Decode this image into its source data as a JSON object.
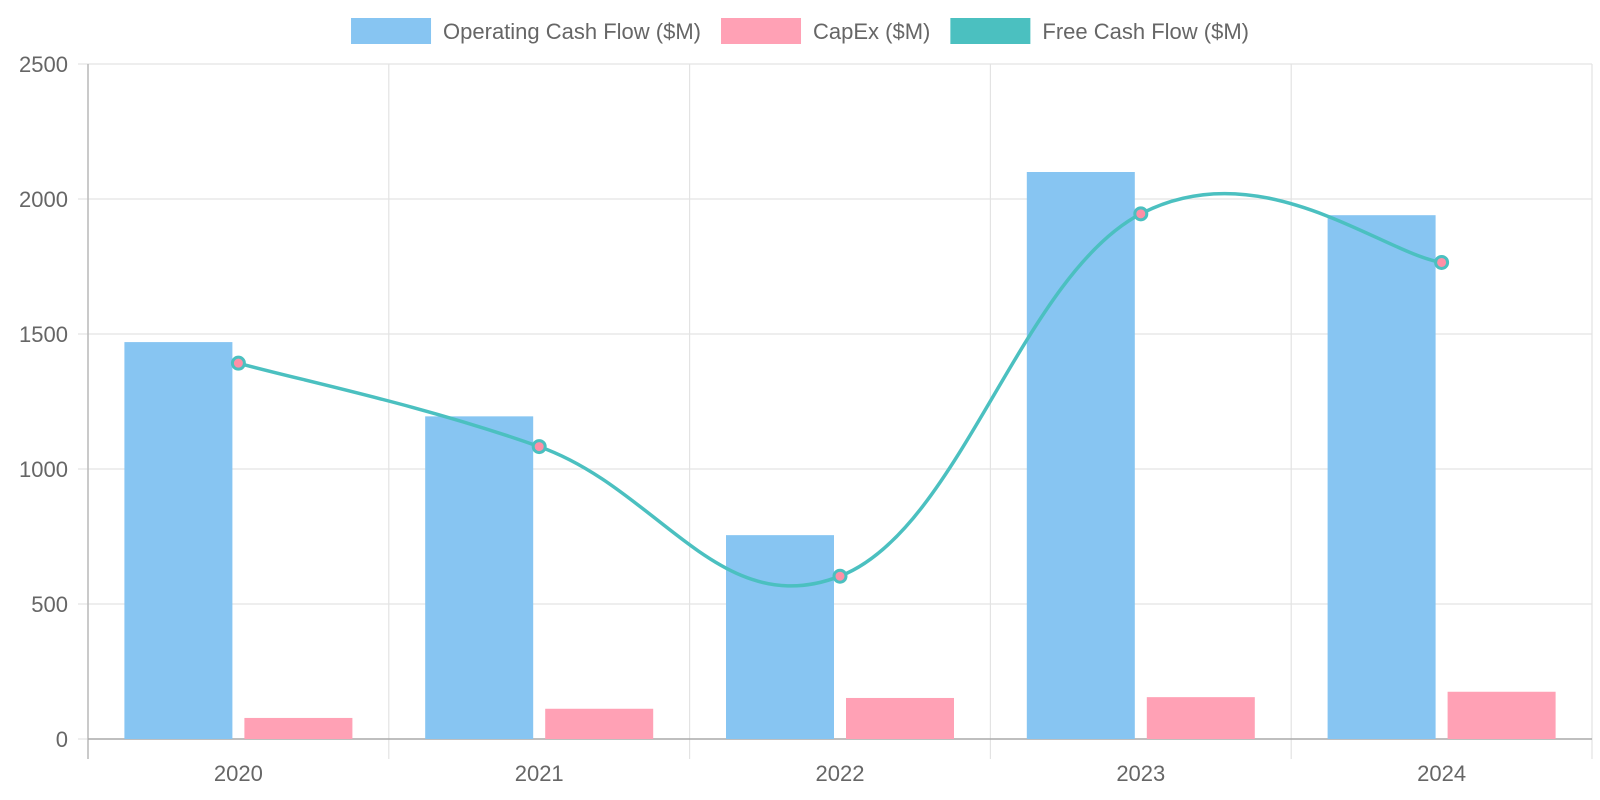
{
  "chart_data": {
    "type": "bar",
    "categories": [
      "2020",
      "2021",
      "2022",
      "2023",
      "2024"
    ],
    "series": [
      {
        "name": "Operating Cash Flow ($M)",
        "type": "bar",
        "color": "#87c5f2",
        "values": [
          1470,
          1195,
          755,
          2100,
          1940
        ]
      },
      {
        "name": "CapEx ($M)",
        "type": "bar",
        "color": "#ffa1b5",
        "values": [
          78,
          112,
          152,
          155,
          175
        ]
      },
      {
        "name": "Free Cash Flow ($M)",
        "type": "line",
        "color": "#4bc0c0",
        "values": [
          1392,
          1083,
          603,
          1945,
          1765
        ]
      }
    ],
    "ylim": [
      0,
      2500
    ],
    "yticks": [
      0,
      500,
      1000,
      1500,
      2000,
      2500
    ],
    "grid": true,
    "legend_position": "top-center",
    "title": "",
    "xlabel": "",
    "ylabel": ""
  }
}
